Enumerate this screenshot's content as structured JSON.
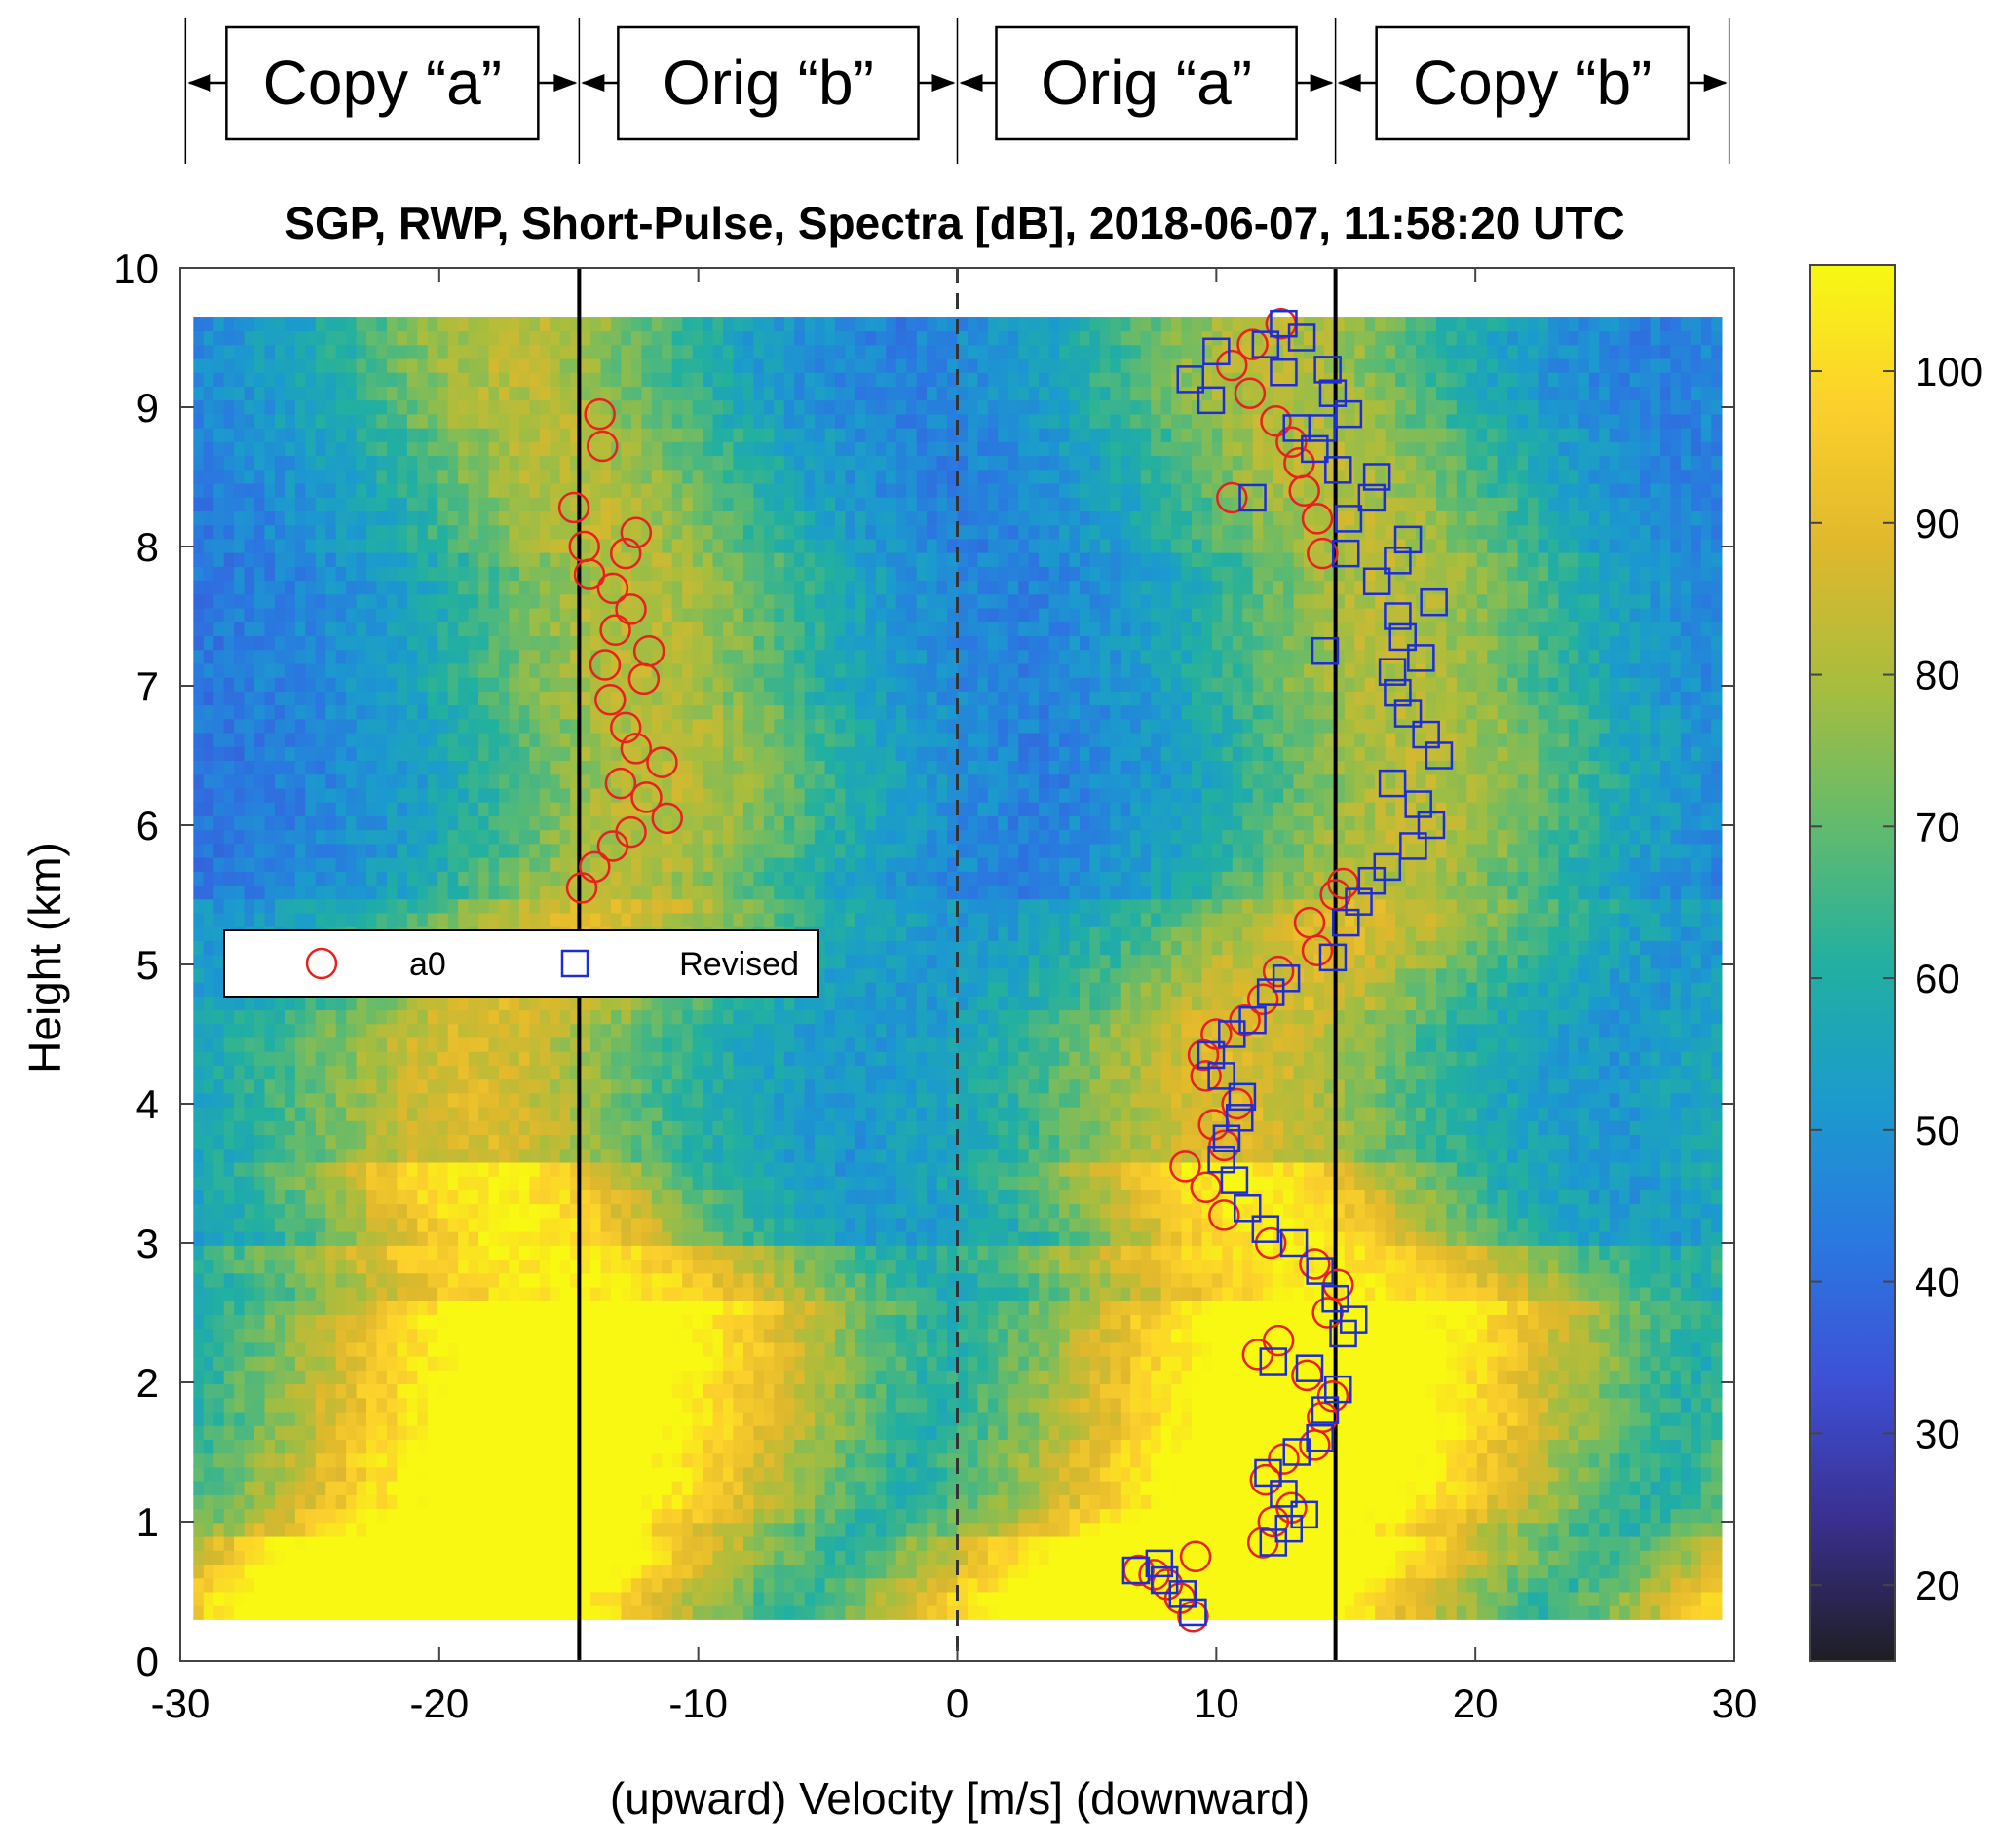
{
  "chart_data": {
    "type": "heatmap",
    "title": "SGP, RWP, Short-Pulse, Spectra [dB], 2018-06-07, 11:58:20 UTC",
    "xlabel": "(upward)  Velocity [m/s]  (downward)",
    "ylabel": "Height (km)",
    "xlim": [
      -30,
      30
    ],
    "ylim": [
      0,
      10
    ],
    "xticks": [
      "-30",
      "-20",
      "-10",
      "0",
      "10",
      "20",
      "30"
    ],
    "yticks": [
      "0",
      "1",
      "2",
      "3",
      "4",
      "5",
      "6",
      "7",
      "8",
      "9",
      "10"
    ],
    "colorbar": {
      "range": [
        15,
        107
      ],
      "ticks": [
        "20",
        "30",
        "40",
        "50",
        "60",
        "70",
        "80",
        "90",
        "100"
      ],
      "colormap": [
        "#1e1e23",
        "#3a2f8f",
        "#3e50d6",
        "#2a78e0",
        "#1b9bcd",
        "#22b0a0",
        "#63bb6c",
        "#a9bd3d",
        "#e0b82c",
        "#fcd02c",
        "#f8f812"
      ]
    },
    "data_extent": {
      "x": [
        -29.5,
        29.5
      ],
      "y": [
        0.3,
        9.65
      ]
    },
    "reference_lines": {
      "nyquist": [
        -14.6,
        14.6
      ],
      "zero": 0,
      "colors": {
        "solid": "#000000",
        "dashed": "#333333"
      }
    },
    "region_labels": [
      "Copy “a”",
      "Orig “b”",
      "Orig “a”",
      "Copy “b”"
    ],
    "region_bounds": [
      -29.8,
      -14.6,
      0,
      14.6,
      29.8
    ],
    "legend": {
      "position": "middle-left"
    },
    "series": [
      {
        "name": "a0",
        "marker": "circle",
        "color": "#e8211e",
        "points": [
          [
            9.1,
            0.32
          ],
          [
            8.6,
            0.45
          ],
          [
            8.1,
            0.55
          ],
          [
            7.6,
            0.62
          ],
          [
            7.0,
            0.65
          ],
          [
            9.2,
            0.75
          ],
          [
            11.8,
            0.85
          ],
          [
            12.2,
            1.0
          ],
          [
            12.9,
            1.1
          ],
          [
            11.9,
            1.3
          ],
          [
            12.6,
            1.45
          ],
          [
            13.8,
            1.55
          ],
          [
            14.1,
            1.75
          ],
          [
            14.5,
            1.9
          ],
          [
            13.5,
            2.05
          ],
          [
            11.6,
            2.2
          ],
          [
            12.4,
            2.3
          ],
          [
            14.3,
            2.5
          ],
          [
            14.7,
            2.7
          ],
          [
            13.8,
            2.85
          ],
          [
            12.1,
            3.0
          ],
          [
            10.3,
            3.2
          ],
          [
            9.6,
            3.4
          ],
          [
            8.8,
            3.55
          ],
          [
            10.3,
            3.7
          ],
          [
            9.9,
            3.85
          ],
          [
            10.8,
            4.0
          ],
          [
            9.6,
            4.2
          ],
          [
            9.5,
            4.35
          ],
          [
            10.0,
            4.5
          ],
          [
            11.1,
            4.6
          ],
          [
            11.8,
            4.75
          ],
          [
            12.4,
            4.95
          ],
          [
            13.9,
            5.1
          ],
          [
            13.6,
            5.3
          ],
          [
            14.6,
            5.5
          ],
          [
            14.9,
            5.58
          ],
          [
            14.1,
            7.95
          ],
          [
            13.9,
            8.2
          ],
          [
            13.4,
            8.4
          ],
          [
            13.2,
            8.6
          ],
          [
            12.9,
            8.75
          ],
          [
            12.3,
            8.9
          ],
          [
            11.3,
            9.1
          ],
          [
            10.6,
            9.3
          ],
          [
            11.4,
            9.45
          ],
          [
            12.5,
            9.6
          ],
          [
            10.6,
            8.35
          ],
          [
            -14.5,
            5.55
          ],
          [
            -14.0,
            5.7
          ],
          [
            -13.3,
            5.85
          ],
          [
            -12.6,
            5.95
          ],
          [
            -11.2,
            6.05
          ],
          [
            -12.0,
            6.2
          ],
          [
            -13.0,
            6.3
          ],
          [
            -11.4,
            6.45
          ],
          [
            -12.4,
            6.55
          ],
          [
            -12.8,
            6.7
          ],
          [
            -13.4,
            6.9
          ],
          [
            -12.1,
            7.05
          ],
          [
            -13.6,
            7.15
          ],
          [
            -11.9,
            7.25
          ],
          [
            -13.2,
            7.4
          ],
          [
            -12.6,
            7.55
          ],
          [
            -13.3,
            7.7
          ],
          [
            -14.2,
            7.8
          ],
          [
            -12.8,
            7.95
          ],
          [
            -14.4,
            8.0
          ],
          [
            -12.4,
            8.1
          ],
          [
            -14.8,
            8.28
          ],
          [
            -13.7,
            8.72
          ],
          [
            -13.8,
            8.95
          ]
        ]
      },
      {
        "name": "Revised",
        "marker": "square",
        "color": "#1e2ed6",
        "points": [
          [
            9.1,
            0.35
          ],
          [
            8.7,
            0.48
          ],
          [
            8.0,
            0.58
          ],
          [
            6.9,
            0.65
          ],
          [
            7.8,
            0.7
          ],
          [
            12.2,
            0.85
          ],
          [
            12.8,
            0.95
          ],
          [
            13.4,
            1.05
          ],
          [
            12.6,
            1.2
          ],
          [
            12.0,
            1.35
          ],
          [
            13.1,
            1.5
          ],
          [
            14.0,
            1.6
          ],
          [
            14.2,
            1.8
          ],
          [
            14.7,
            1.95
          ],
          [
            13.6,
            2.1
          ],
          [
            12.2,
            2.15
          ],
          [
            14.9,
            2.35
          ],
          [
            15.3,
            2.45
          ],
          [
            14.6,
            2.6
          ],
          [
            14.0,
            2.8
          ],
          [
            13.0,
            3.0
          ],
          [
            11.9,
            3.1
          ],
          [
            11.2,
            3.25
          ],
          [
            10.7,
            3.45
          ],
          [
            10.2,
            3.6
          ],
          [
            10.4,
            3.75
          ],
          [
            10.9,
            3.9
          ],
          [
            11.0,
            4.05
          ],
          [
            10.2,
            4.2
          ],
          [
            9.8,
            4.35
          ],
          [
            10.6,
            4.5
          ],
          [
            11.4,
            4.6
          ],
          [
            12.1,
            4.8
          ],
          [
            12.7,
            4.9
          ],
          [
            14.5,
            5.05
          ],
          [
            15.0,
            5.3
          ],
          [
            15.5,
            5.45
          ],
          [
            16.0,
            5.6
          ],
          [
            16.6,
            5.7
          ],
          [
            17.6,
            5.85
          ],
          [
            18.3,
            6.0
          ],
          [
            17.8,
            6.15
          ],
          [
            16.8,
            6.3
          ],
          [
            18.6,
            6.5
          ],
          [
            18.1,
            6.65
          ],
          [
            17.4,
            6.8
          ],
          [
            17.0,
            6.95
          ],
          [
            16.8,
            7.1
          ],
          [
            17.9,
            7.2
          ],
          [
            17.2,
            7.35
          ],
          [
            17.0,
            7.5
          ],
          [
            18.4,
            7.6
          ],
          [
            16.2,
            7.75
          ],
          [
            17.0,
            7.9
          ],
          [
            14.2,
            7.25
          ],
          [
            17.4,
            8.05
          ],
          [
            15.0,
            7.95
          ],
          [
            15.1,
            8.2
          ],
          [
            16.0,
            8.35
          ],
          [
            16.2,
            8.5
          ],
          [
            14.7,
            8.55
          ],
          [
            13.8,
            8.7
          ],
          [
            13.1,
            8.85
          ],
          [
            14.1,
            8.85
          ],
          [
            15.1,
            8.95
          ],
          [
            14.5,
            9.1
          ],
          [
            12.6,
            9.25
          ],
          [
            14.3,
            9.27
          ],
          [
            10.0,
            9.4
          ],
          [
            13.3,
            9.5
          ],
          [
            12.6,
            9.6
          ],
          [
            9.0,
            9.2
          ],
          [
            9.8,
            9.05
          ],
          [
            11.4,
            8.35
          ],
          [
            11.9,
            9.45
          ]
        ]
      }
    ]
  }
}
